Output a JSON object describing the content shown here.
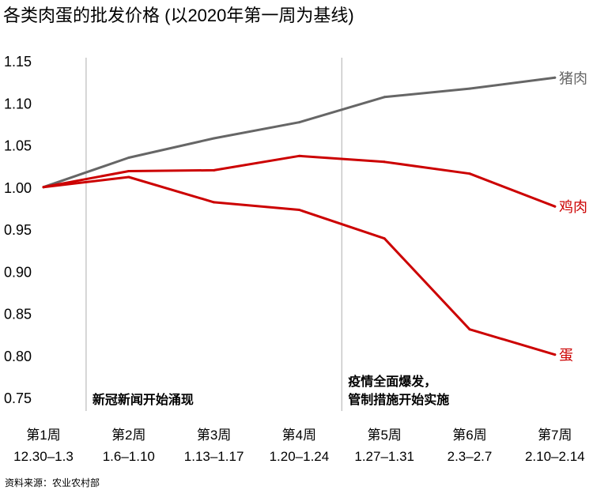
{
  "title": "各类肉蛋的批发价格 (以2020年第一周为基线)",
  "source": "资料来源：农业农村部",
  "chart_data": {
    "type": "line",
    "title": "各类肉蛋的批发价格 (以2020年第一周为基线)",
    "categories": [
      {
        "week": "第1周",
        "dates": "12.30–1.3"
      },
      {
        "week": "第2周",
        "dates": "1.6–1.10"
      },
      {
        "week": "第3周",
        "dates": "1.13–1.17"
      },
      {
        "week": "第4周",
        "dates": "1.20–1.24"
      },
      {
        "week": "第5周",
        "dates": "1.27–1.31"
      },
      {
        "week": "第6周",
        "dates": "2.3–2.7"
      },
      {
        "week": "第7周",
        "dates": "2.10–2.14"
      }
    ],
    "ylim": [
      0.75,
      1.15
    ],
    "yticks": [
      "1.15",
      "1.10",
      "1.05",
      "1.00",
      "0.95",
      "0.90",
      "0.85",
      "0.80",
      "0.75"
    ],
    "grid": false,
    "series": [
      {
        "name": "猪肉",
        "color": "#666666",
        "values": [
          1.0,
          1.035,
          1.058,
          1.077,
          1.107,
          1.117,
          1.13
        ]
      },
      {
        "name": "鸡肉",
        "color": "#cc0000",
        "values": [
          1.0,
          1.019,
          1.02,
          1.037,
          1.03,
          1.016,
          0.977
        ]
      },
      {
        "name": "蛋",
        "color": "#cc0000",
        "values": [
          1.0,
          1.012,
          0.982,
          0.973,
          0.939,
          0.831,
          0.801
        ]
      }
    ],
    "annotations": [
      {
        "at_category": 0.5,
        "lines": [
          "新冠新闻开始涌现"
        ]
      },
      {
        "at_category": 3.5,
        "lines": [
          "疫情全面爆发，",
          "管制措施开始实施"
        ]
      }
    ],
    "vline_color": "#bbbbbb"
  }
}
